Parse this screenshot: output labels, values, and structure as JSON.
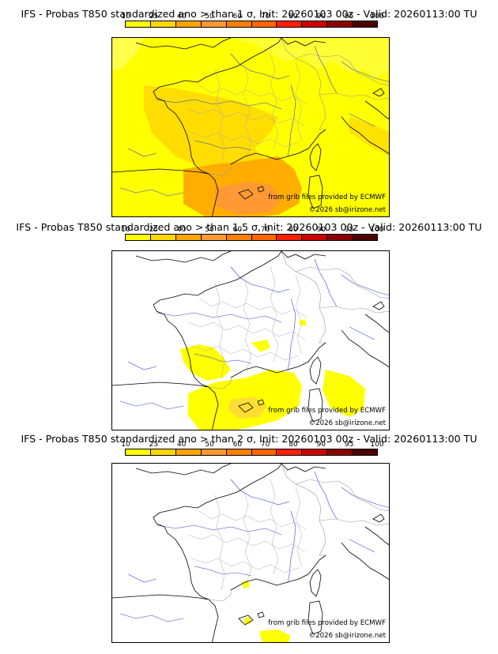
{
  "legend": {
    "ticks": [
      "10",
      "25",
      "40",
      "50",
      "60",
      "70",
      "80",
      "90",
      "95",
      "100"
    ],
    "colors": [
      "#ffff00",
      "#ffd700",
      "#ffa500",
      "#ff9933",
      "#ff8000",
      "#ff6600",
      "#ff2000",
      "#cc0000",
      "#8b0000",
      "#4d0000"
    ]
  },
  "panels": [
    {
      "title": "IFS - Probas T850  standardized ano > than 1 σ, Init: 20260103 00z - Valid: 20260113:00 TU",
      "source": "from grib files provided by ECMWF",
      "copyright": "©2026 sb@irizone.net"
    },
    {
      "title": "IFS - Probas T850  standardized ano > than 1.5 σ, Init: 20260103 00z - Valid: 20260113:00 TU",
      "source": "from grib files provided by ECMWF",
      "copyright": "©2026 sb@irizone.net"
    },
    {
      "title": "IFS - Probas T850  standardized ano > than 2 σ, Init: 20260103 00z - Valid: 20260113:00 TU",
      "source": "from grib files provided by ECMWF",
      "copyright": "©2026 sb@irizone.net"
    }
  ]
}
